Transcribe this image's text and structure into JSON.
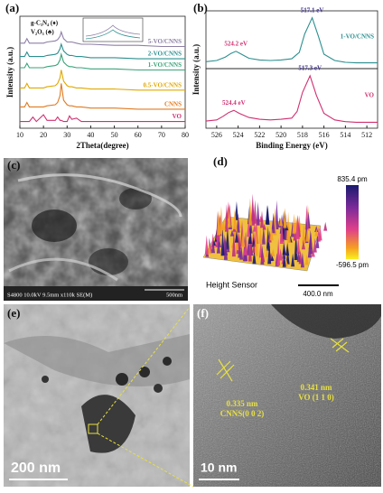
{
  "chart_data": [
    {
      "type": "line",
      "xlim": [
        10,
        80
      ],
      "xticks": [
        10,
        20,
        30,
        40,
        50,
        60,
        70,
        80
      ],
      "ylim": [
        0,
        100
      ],
      "x_label": "2Theta(degree)",
      "y_label": "Intensity (a.u.)",
      "legend": [
        "g-C₃N₄ (♦)",
        "V₂O₅ (♣)"
      ],
      "x": [
        10,
        12,
        13,
        14,
        15.5,
        17,
        20,
        21.5,
        25,
        26,
        27,
        27.5,
        28.5,
        30,
        31,
        32,
        34,
        36,
        40,
        50,
        60,
        70,
        80
      ],
      "series": [
        {
          "name": "5-VO/CNNS",
          "color": "#8e7fa6",
          "values": [
            76,
            76,
            80,
            76,
            76,
            76,
            76,
            77,
            78,
            79,
            82,
            86,
            80,
            77,
            77,
            77,
            76,
            75,
            75,
            74,
            74,
            73,
            73
          ]
        },
        {
          "name": "2-VO/CNNS",
          "color": "#2c8f8f",
          "values": [
            64,
            64,
            68,
            64,
            64,
            64,
            64,
            65,
            66,
            67,
            71,
            75,
            69,
            66,
            65,
            65,
            64,
            64,
            63,
            63,
            62,
            62,
            62
          ]
        },
        {
          "name": "1-VO/CNNS",
          "color": "#3aa37a",
          "values": [
            54,
            54,
            58,
            54,
            54,
            54,
            54,
            55,
            56,
            57,
            61,
            66,
            59,
            56,
            55,
            55,
            54,
            54,
            53,
            53,
            52,
            52,
            52
          ]
        },
        {
          "name": "0.5-VO/CNNS",
          "color": "#e0a800",
          "values": [
            36,
            36,
            40,
            36,
            36,
            36,
            36,
            37,
            38,
            40,
            45,
            52,
            42,
            38,
            37,
            37,
            36,
            36,
            35,
            35,
            34,
            34,
            34
          ]
        },
        {
          "name": "CNNS",
          "color": "#e07a20",
          "values": [
            19,
            19,
            23,
            19,
            19,
            19,
            19,
            20,
            21,
            23,
            29,
            40,
            25,
            21,
            20,
            20,
            19,
            19,
            18,
            18,
            17,
            17,
            17
          ]
        },
        {
          "name": "VO",
          "color": "#d03070",
          "values": [
            6,
            6,
            6,
            6,
            10,
            6,
            12,
            7,
            7,
            10,
            7,
            7,
            6,
            6,
            11,
            8,
            9,
            6,
            6,
            6,
            6,
            6,
            6
          ]
        }
      ]
    },
    {
      "type": "line",
      "xlim": [
        527,
        511
      ],
      "ylim": [
        0,
        100
      ],
      "y_label": "Intensity (a.u.)",
      "annotations": [
        "524.2 eV",
        "517.1 eV"
      ],
      "x": [
        527,
        526,
        525.2,
        524.7,
        524.2,
        523.7,
        523,
        522,
        521,
        520,
        519,
        518.3,
        517.8,
        517.1,
        516.5,
        516,
        515,
        514,
        513,
        511
      ],
      "series": [
        {
          "name": "1-VO/CNNS",
          "color": "#2c8f8f",
          "values": [
            12,
            14,
            20,
            26,
            30,
            25,
            18,
            15,
            14,
            15,
            17,
            28,
            60,
            88,
            55,
            25,
            14,
            11,
            10,
            10
          ]
        }
      ]
    },
    {
      "type": "line",
      "xlim": [
        527,
        511
      ],
      "xticks": [
        526,
        524,
        522,
        520,
        518,
        516,
        514,
        512
      ],
      "ylim": [
        0,
        100
      ],
      "x_label": "Binding Energy (eV)",
      "annotations": [
        "524.4 eV",
        "517.3 eV"
      ],
      "x": [
        527,
        526,
        525.4,
        524.9,
        524.4,
        523.9,
        523,
        522,
        521,
        520,
        519,
        518.5,
        518,
        517.3,
        516.7,
        516,
        515,
        514,
        513,
        511
      ],
      "series": [
        {
          "name": "VO",
          "color": "#d03070",
          "values": [
            12,
            14,
            20,
            26,
            30,
            25,
            18,
            15,
            14,
            15,
            17,
            28,
            60,
            88,
            55,
            25,
            14,
            11,
            10,
            10
          ]
        }
      ]
    }
  ],
  "panels": {
    "a": "(a)",
    "b": "(b)",
    "c": "(c)",
    "d": "(d)",
    "e": "(e)",
    "f": "(f)"
  },
  "sem": {
    "info": "S4800 10.0kV 9.5mm x110k SE(M)",
    "scale": "500nm"
  },
  "afm": {
    "max": "835.4 pm",
    "min": "-596.5 pm",
    "sensor": "Height Sensor",
    "scale": "400.0 nm"
  },
  "tem": {
    "scale": "200 nm"
  },
  "hrtem": {
    "scale": "10 nm",
    "spacing1": "0.335 nm",
    "plane1": "CNNS(0 0 2)",
    "spacing2": "0.341 nm",
    "plane2": "VO (1 1 0)"
  }
}
